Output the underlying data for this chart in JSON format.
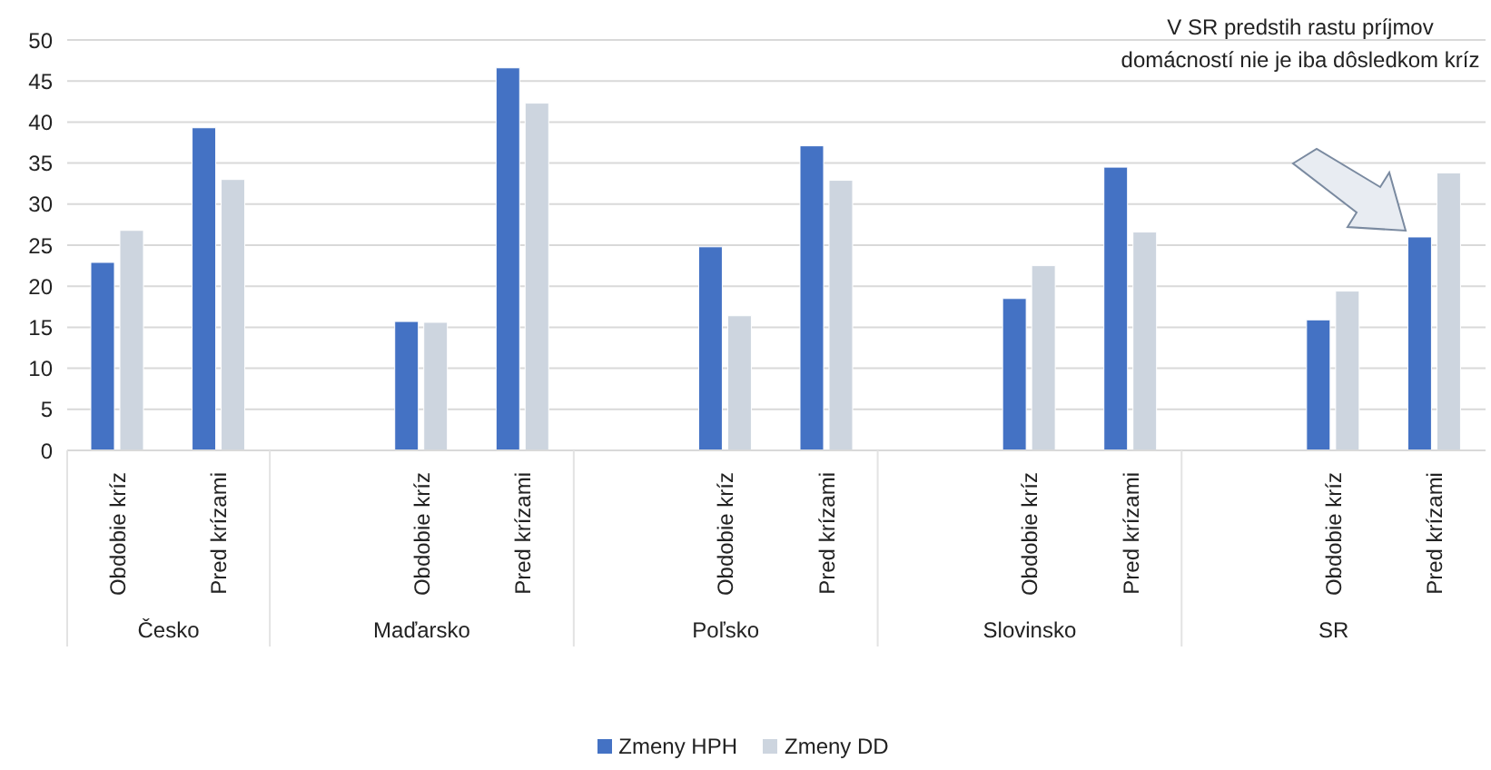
{
  "chart_data": {
    "type": "bar",
    "categories": [
      "Obdobie kríz",
      "Pred krízami",
      null,
      "Obdobie kríz",
      "Pred krízami",
      null,
      "Obdobie kríz",
      "Pred krízami",
      null,
      "Obdobie kríz",
      "Pred krízami",
      null,
      "Obdobie kríz",
      "Pred krízami"
    ],
    "series": [
      {
        "name": "Zmeny HPH",
        "color": "#4472c4",
        "values": [
          22.9,
          39.3,
          null,
          15.7,
          46.6,
          null,
          24.8,
          37.1,
          null,
          18.5,
          34.5,
          null,
          15.9,
          26.0
        ]
      },
      {
        "name": "Zmeny DD",
        "color": "#cdd5df",
        "values": [
          26.8,
          33.0,
          null,
          15.6,
          42.3,
          null,
          16.4,
          32.9,
          null,
          22.5,
          26.6,
          null,
          19.4,
          33.8
        ]
      }
    ],
    "ylim": [
      0,
      50
    ],
    "yticks": [
      0,
      5,
      10,
      15,
      20,
      25,
      30,
      35,
      40,
      45,
      50
    ],
    "grid": "y",
    "legend": "bottom",
    "annotations": [
      "V SR predstih rastu príjmov domácností nie je iba dôsledkom kríz",
      "Česko",
      "Maďarsko",
      "Poľsko",
      "Slovinsko",
      "SR"
    ]
  }
}
